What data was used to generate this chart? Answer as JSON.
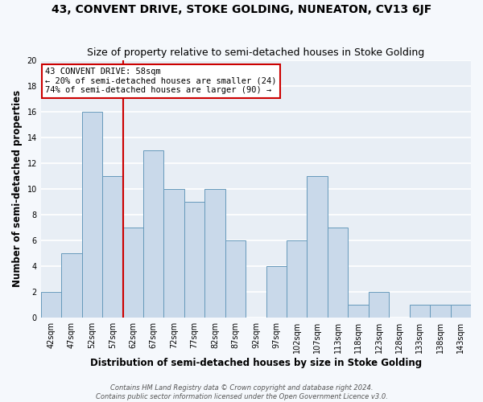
{
  "title": "43, CONVENT DRIVE, STOKE GOLDING, NUNEATON, CV13 6JF",
  "subtitle": "Size of property relative to semi-detached houses in Stoke Golding",
  "xlabel": "Distribution of semi-detached houses by size in Stoke Golding",
  "ylabel": "Number of semi-detached properties",
  "bin_labels": [
    "42sqm",
    "47sqm",
    "52sqm",
    "57sqm",
    "62sqm",
    "67sqm",
    "72sqm",
    "77sqm",
    "82sqm",
    "87sqm",
    "92sqm",
    "97sqm",
    "102sqm",
    "107sqm",
    "113sqm",
    "118sqm",
    "123sqm",
    "128sqm",
    "133sqm",
    "138sqm",
    "143sqm"
  ],
  "bar_heights": [
    2,
    5,
    16,
    11,
    7,
    13,
    10,
    9,
    10,
    6,
    0,
    4,
    6,
    11,
    7,
    1,
    2,
    0,
    1,
    1,
    1
  ],
  "bar_color": "#c9d9ea",
  "bar_edge_color": "#6699bb",
  "vline_color": "#cc0000",
  "annotation_title": "43 CONVENT DRIVE: 58sqm",
  "annotation_line1": "← 20% of semi-detached houses are smaller (24)",
  "annotation_line2": "74% of semi-detached houses are larger (90) →",
  "annotation_box_color": "white",
  "annotation_box_edge_color": "#cc0000",
  "ylim": [
    0,
    20
  ],
  "yticks": [
    0,
    2,
    4,
    6,
    8,
    10,
    12,
    14,
    16,
    18,
    20
  ],
  "footnote1": "Contains HM Land Registry data © Crown copyright and database right 2024.",
  "footnote2": "Contains public sector information licensed under the Open Government Licence v3.0.",
  "bg_color": "#f5f8fc",
  "plot_bg_color": "#e8eef5",
  "grid_color": "#ffffff",
  "title_fontsize": 10,
  "subtitle_fontsize": 9,
  "axis_label_fontsize": 8.5,
  "tick_fontsize": 7,
  "footnote_fontsize": 6,
  "annotation_fontsize": 7.5
}
